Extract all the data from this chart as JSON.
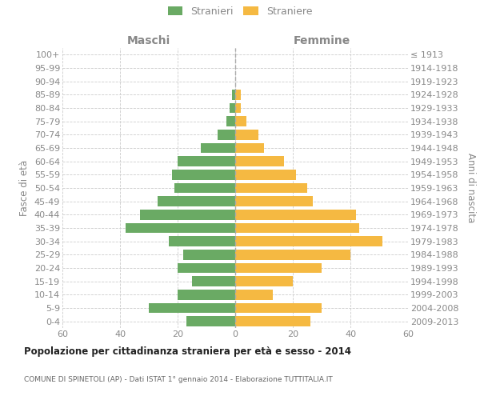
{
  "age_groups": [
    "0-4",
    "5-9",
    "10-14",
    "15-19",
    "20-24",
    "25-29",
    "30-34",
    "35-39",
    "40-44",
    "45-49",
    "50-54",
    "55-59",
    "60-64",
    "65-69",
    "70-74",
    "75-79",
    "80-84",
    "85-89",
    "90-94",
    "95-99",
    "100+"
  ],
  "birth_years": [
    "2009-2013",
    "2004-2008",
    "1999-2003",
    "1994-1998",
    "1989-1993",
    "1984-1988",
    "1979-1983",
    "1974-1978",
    "1969-1973",
    "1964-1968",
    "1959-1963",
    "1954-1958",
    "1949-1953",
    "1944-1948",
    "1939-1943",
    "1934-1938",
    "1929-1933",
    "1924-1928",
    "1919-1923",
    "1914-1918",
    "≤ 1913"
  ],
  "maschi": [
    17,
    30,
    20,
    15,
    20,
    18,
    23,
    38,
    33,
    27,
    21,
    22,
    20,
    12,
    6,
    3,
    2,
    1,
    0,
    0,
    0
  ],
  "femmine": [
    26,
    30,
    13,
    20,
    30,
    40,
    51,
    43,
    42,
    27,
    25,
    21,
    17,
    10,
    8,
    4,
    2,
    2,
    0,
    0,
    0
  ],
  "male_color": "#6aaa64",
  "female_color": "#f5b942",
  "background_color": "#ffffff",
  "grid_color": "#cccccc",
  "title": "Popolazione per cittadinanza straniera per età e sesso - 2014",
  "subtitle": "COMUNE DI SPINETOLI (AP) - Dati ISTAT 1° gennaio 2014 - Elaborazione TUTTITALIA.IT",
  "ylabel_left": "Fasce di età",
  "ylabel_right": "Anni di nascita",
  "xlabel_left": "Maschi",
  "xlabel_right": "Femmine",
  "legend_maschi": "Stranieri",
  "legend_femmine": "Straniere",
  "xlim": 60,
  "label_color": "#888888",
  "title_color": "#222222",
  "subtitle_color": "#666666",
  "center_line_color": "#aaaaaa",
  "tick_label_fontsize": 8,
  "bar_height": 0.75
}
